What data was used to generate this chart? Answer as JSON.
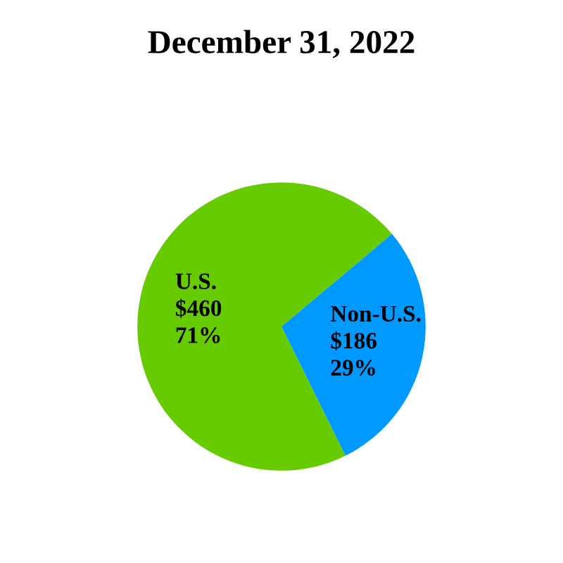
{
  "chart_data": {
    "type": "pie",
    "title": "December 31, 2022",
    "categories": [
      "U.S.",
      "Non-U.S."
    ],
    "values": [
      460,
      186
    ],
    "value_labels": [
      "$460\n71%",
      "$186\n29%"
    ],
    "colors": [
      "#66cc00",
      "#0099ff"
    ],
    "legend": false
  }
}
